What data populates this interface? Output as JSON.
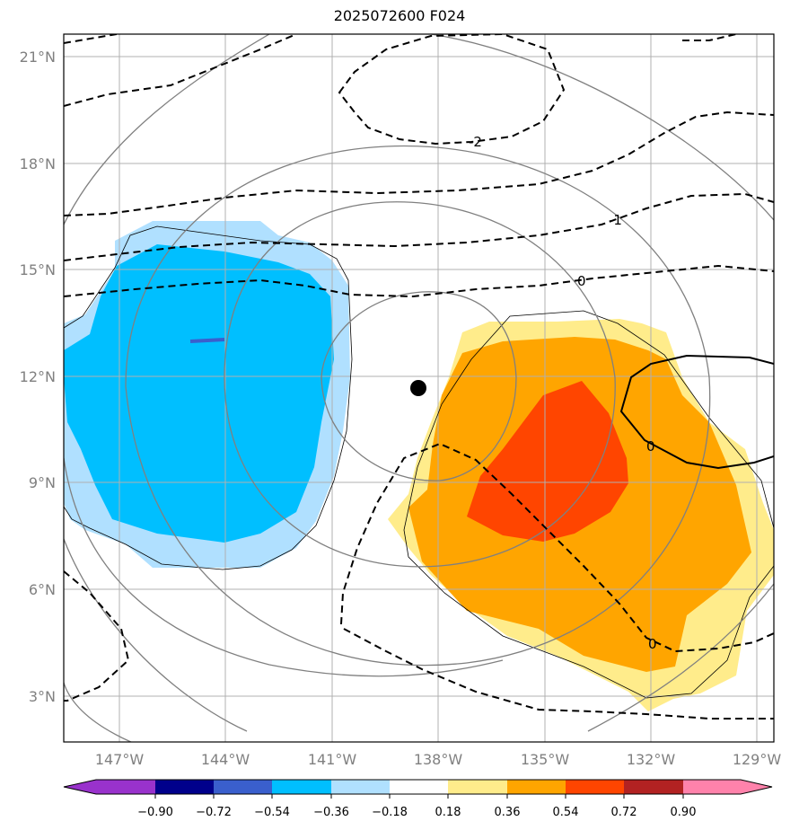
{
  "title": "2025072600 F024",
  "latitude_labels": [
    "21°N",
    "18°N",
    "15°N",
    "12°N",
    "9°N",
    "6°N",
    "3°N"
  ],
  "longitude_labels": [
    "147°W",
    "144°W",
    "141°W",
    "138°W",
    "135°W",
    "132°W",
    "129°W"
  ],
  "contour_labels": [
    "-2",
    "-1",
    "0",
    "0",
    "0"
  ],
  "colorbar": {
    "ticks": [
      "−0.90",
      "−0.72",
      "−0.54",
      "−0.36",
      "−0.18",
      "0.18",
      "0.36",
      "0.54",
      "0.72",
      "0.90"
    ],
    "colors": [
      "#9932cc",
      "#00008b",
      "#3a5fcd",
      "#00bfff",
      "#b0e0ff",
      "#ffffff",
      "#ffec8b",
      "#ffa500",
      "#ff4500",
      "#b22222",
      "#ff82ab"
    ]
  },
  "colors": {
    "negative_light": "#b0e0ff",
    "negative_mid": "#00bfff",
    "positive_light": "#ffec8b",
    "positive_mid": "#ffa500",
    "positive_strong": "#ff4500",
    "grid": "#b0b0b0",
    "circle_contours": "#808080"
  },
  "center_marker": "black-dot"
}
